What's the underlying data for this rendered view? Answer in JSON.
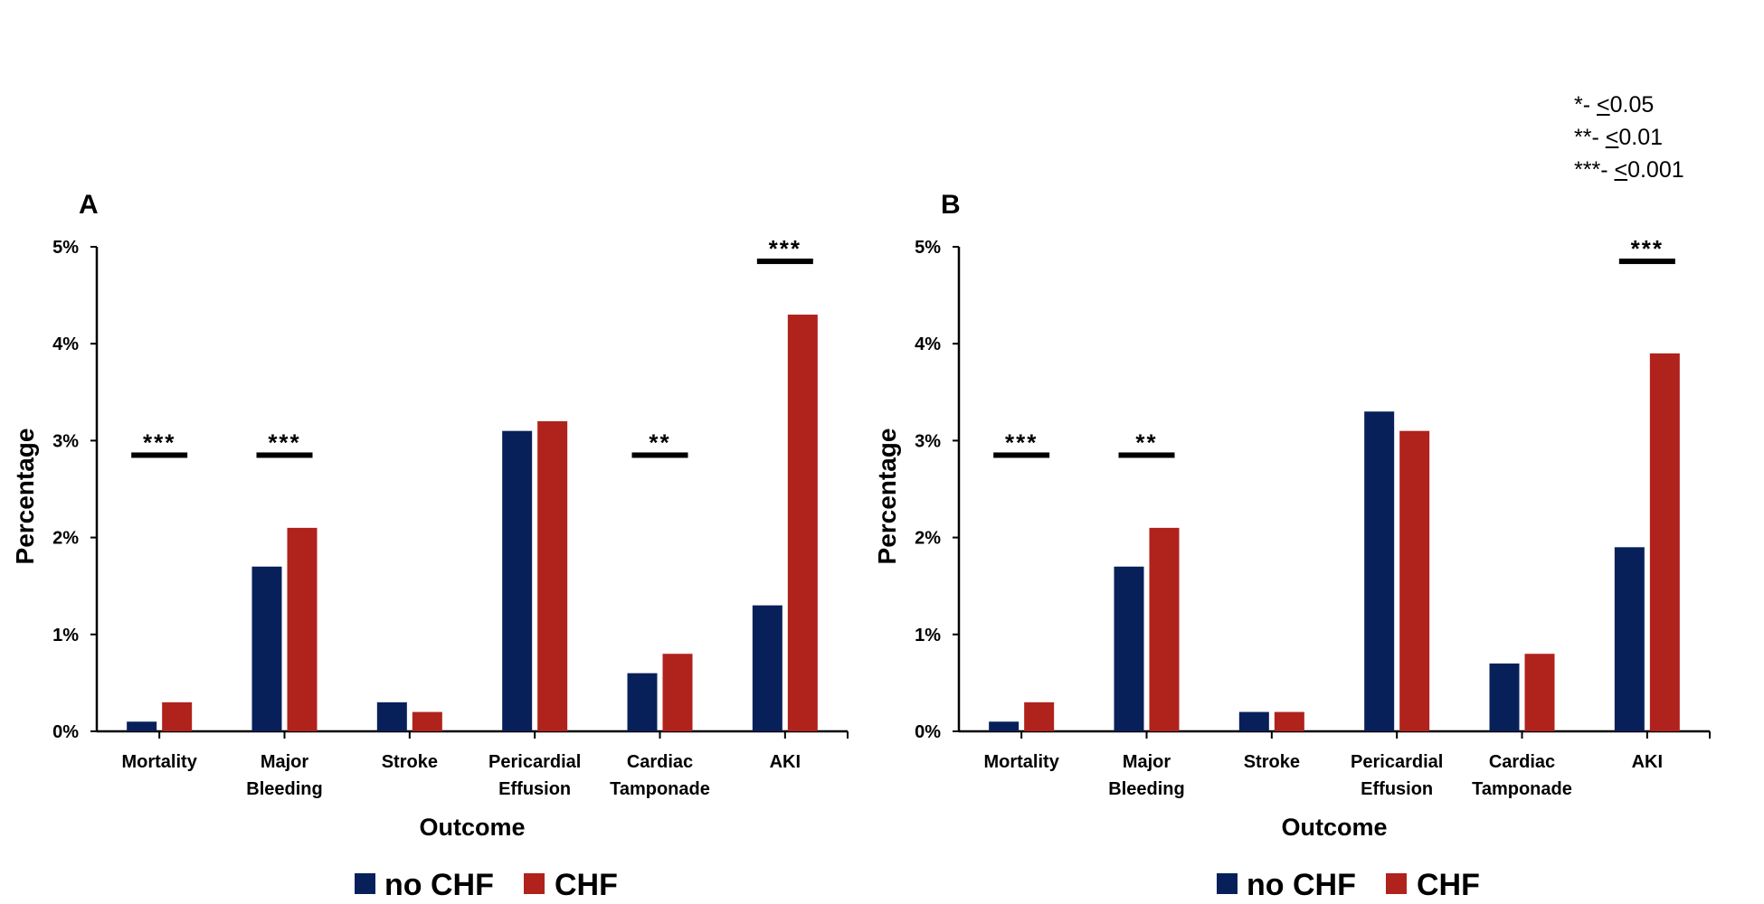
{
  "significance_key": [
    {
      "stars": "*",
      "sep": "- ",
      "sym": "<",
      "value": "0.05"
    },
    {
      "stars": "**",
      "sep": "- ",
      "sym": "<",
      "value": "0.01"
    },
    {
      "stars": "***",
      "sep": "- ",
      "sym": "<",
      "value": "0.001"
    }
  ],
  "colors": {
    "no_chf": "#08205a",
    "chf": "#b0221c"
  },
  "chart_data": [
    {
      "type": "bar",
      "panel": "A",
      "categories": [
        [
          "Mortality"
        ],
        [
          "Major",
          "Bleeding"
        ],
        [
          "Stroke"
        ],
        [
          "Pericardial",
          "Effusion"
        ],
        [
          "Cardiac",
          "Tamponade"
        ],
        [
          "AKI"
        ]
      ],
      "series": [
        {
          "name": "no CHF",
          "values": [
            0.1,
            1.7,
            0.3,
            3.1,
            0.6,
            1.3
          ]
        },
        {
          "name": "CHF",
          "values": [
            0.3,
            2.1,
            0.2,
            3.2,
            0.8,
            4.3
          ]
        }
      ],
      "significance": [
        "***",
        "***",
        "",
        "",
        "**",
        "***"
      ],
      "xlabel": "Outcome",
      "ylabel": "Percentage",
      "ylim": [
        0,
        5
      ],
      "yticks": [
        "0%",
        "1%",
        "2%",
        "3%",
        "4%",
        "5%"
      ],
      "grid": false,
      "legend": "bottom"
    },
    {
      "type": "bar",
      "panel": "B",
      "categories": [
        [
          "Mortality"
        ],
        [
          "Major",
          "Bleeding"
        ],
        [
          "Stroke"
        ],
        [
          "Pericardial",
          "Effusion"
        ],
        [
          "Cardiac",
          "Tamponade"
        ],
        [
          "AKI"
        ]
      ],
      "series": [
        {
          "name": "no CHF",
          "values": [
            0.1,
            1.7,
            0.2,
            3.3,
            0.7,
            1.9
          ]
        },
        {
          "name": "CHF",
          "values": [
            0.3,
            2.1,
            0.2,
            3.1,
            0.8,
            3.9
          ]
        }
      ],
      "significance": [
        "***",
        "**",
        "",
        "",
        "",
        "***"
      ],
      "xlabel": "Outcome",
      "ylabel": "Percentage",
      "ylim": [
        0,
        5
      ],
      "yticks": [
        "0%",
        "1%",
        "2%",
        "3%",
        "4%",
        "5%"
      ],
      "grid": false,
      "legend": "bottom"
    }
  ]
}
